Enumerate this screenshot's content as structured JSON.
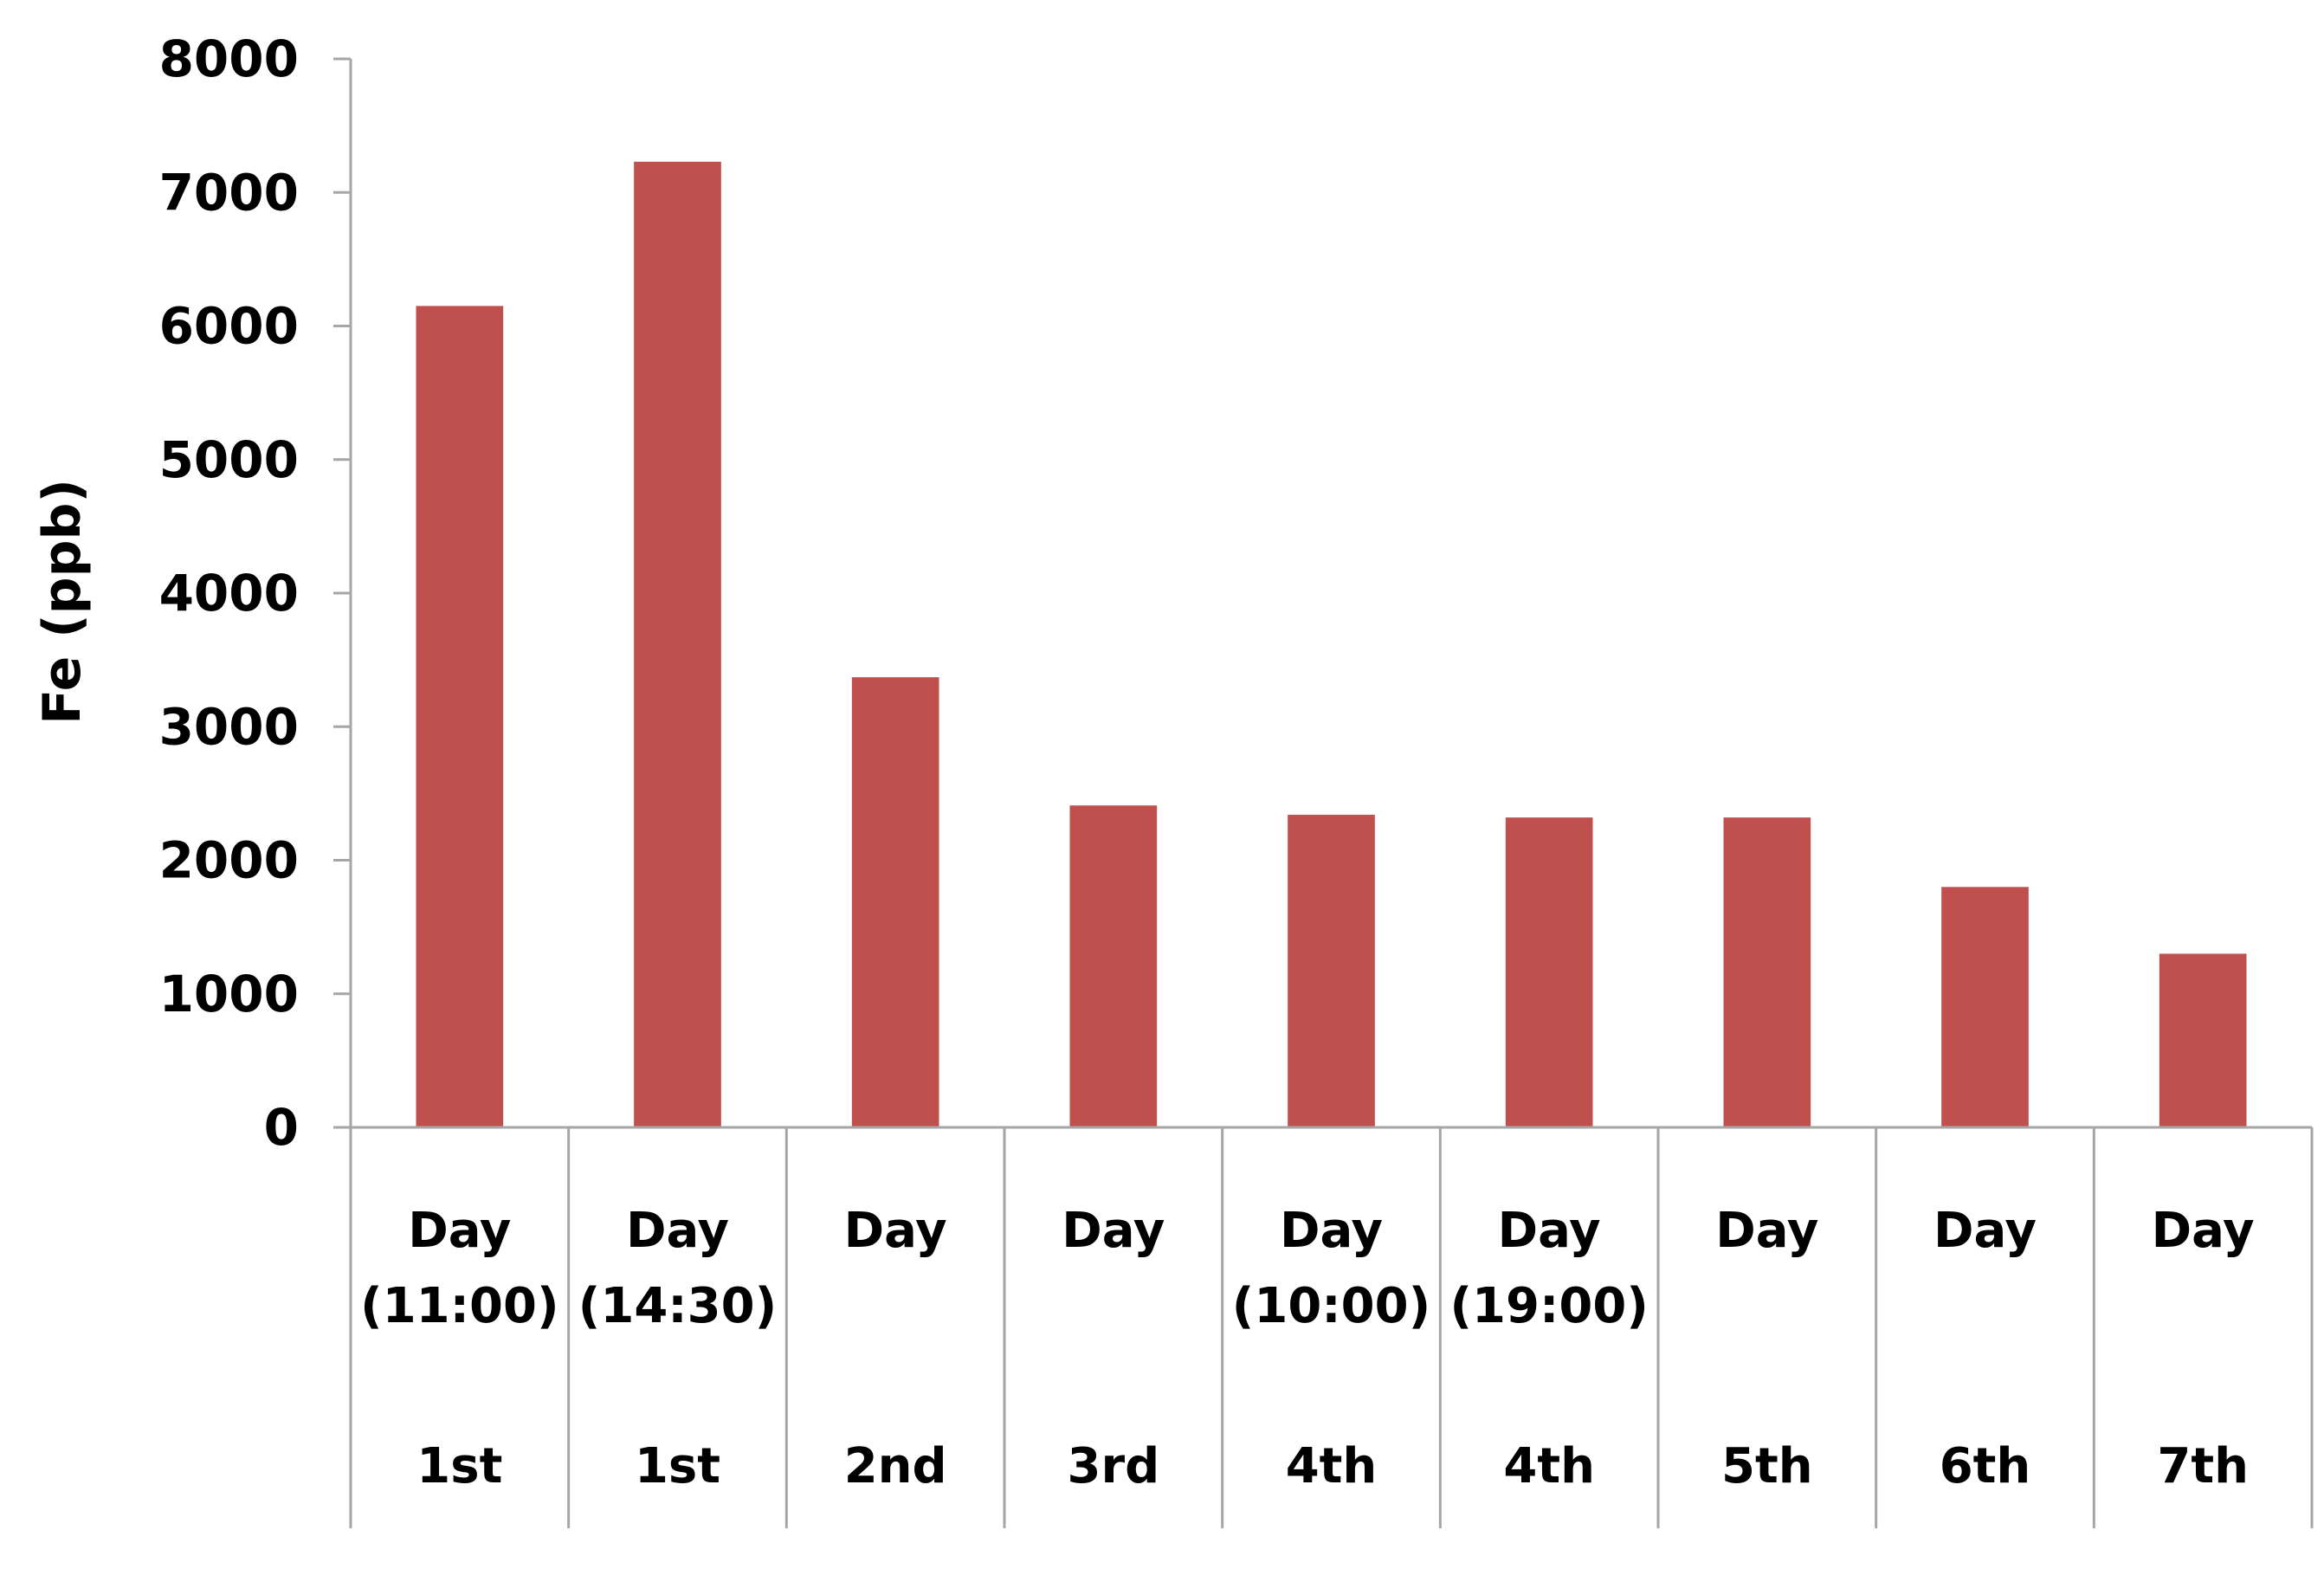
{
  "chart_data": {
    "type": "bar",
    "ylabel": "Fe (ppb)",
    "xlabel": "",
    "ylim": [
      0,
      8000
    ],
    "yticks": [
      0,
      1000,
      2000,
      3000,
      4000,
      5000,
      6000,
      7000,
      8000
    ],
    "grid": false,
    "legend": "none",
    "colors": {
      "bar": "#c0504d",
      "axis": "#a6a6a6"
    },
    "categories": [
      {
        "line1": "Day",
        "line2": "(11:00)",
        "group": "1st"
      },
      {
        "line1": "Day",
        "line2": "(14:30)",
        "group": "1st"
      },
      {
        "line1": "Day",
        "line2": "",
        "group": "2nd"
      },
      {
        "line1": "Day",
        "line2": "",
        "group": "3rd"
      },
      {
        "line1": "Day",
        "line2": "(10:00)",
        "group": "4th"
      },
      {
        "line1": "Day",
        "line2": "(19:00)",
        "group": "4th"
      },
      {
        "line1": "Day",
        "line2": "",
        "group": "5th"
      },
      {
        "line1": "Day",
        "line2": "",
        "group": "6th"
      },
      {
        "line1": "Day",
        "line2": "",
        "group": "7th"
      }
    ],
    "values": [
      6150,
      7230,
      3370,
      2410,
      2340,
      2320,
      2320,
      1800,
      1300
    ]
  }
}
